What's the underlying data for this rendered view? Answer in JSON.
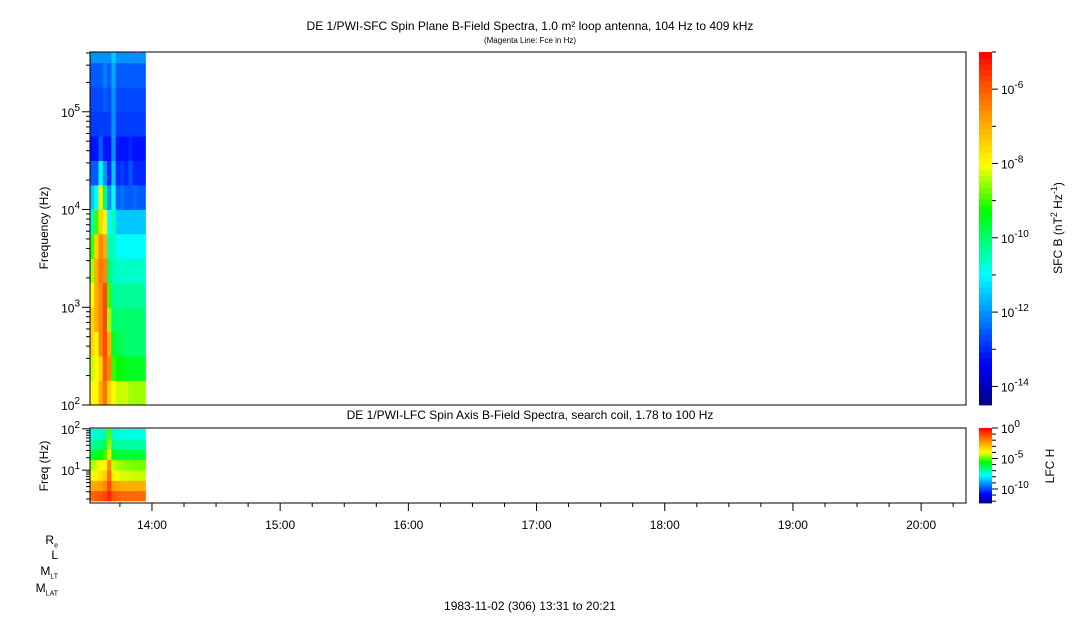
{
  "chart_data": [
    {
      "type": "heatmap",
      "title": "DE 1/PWI-SFC  Spin Plane B-Field Spectra, 1.0 m² loop antenna, 104 Hz to 409 kHz",
      "subtitle": "(Magenta Line: Fce in Hz)",
      "ylabel": "Frequency (Hz)",
      "yscale": "log",
      "ylim": [
        100,
        409000
      ],
      "ytick_labels": [
        "10^2",
        "10^3",
        "10^4",
        "10^5"
      ],
      "colorbar": {
        "label": "SFC B (nT^2 Hz^-1)",
        "scale": "log",
        "range_log10": [
          -14.5,
          -5
        ],
        "tick_labels": [
          "10^-6",
          "10^-8",
          "10^-10",
          "10^-12",
          "10^-14"
        ],
        "colormap": [
          "#00007f",
          "#0000ff",
          "#00ffff",
          "#00ff00",
          "#ffff00",
          "#ff8000",
          "#ff0000"
        ]
      },
      "time_bins": [
        "13:31",
        "13:33",
        "13:35",
        "13:37",
        "13:39",
        "13:41",
        "13:43",
        "13:45",
        "13:47",
        "13:49",
        "13:51",
        "13:53",
        "13:55",
        "13:57"
      ],
      "log10_freq_bins": [
        2.0,
        2.25,
        2.5,
        2.75,
        3.0,
        3.25,
        3.5,
        3.75,
        4.0,
        4.25,
        4.5,
        4.75,
        5.0,
        5.25,
        5.5,
        5.61
      ],
      "log10_values": [
        [
          -8.0,
          -8.0,
          -7.0,
          -6.3,
          -7.5,
          -8.0,
          -8.3,
          -8.3,
          -8.3,
          -8.5,
          -8.5,
          -8.5,
          -8.5
        ],
        [
          -8.3,
          -8.0,
          -7.5,
          -6.0,
          -6.5,
          -9.0,
          -9.3,
          -9.3,
          -9.5,
          -9.5,
          -9.5,
          -9.5,
          -9.5
        ],
        [
          -7.5,
          -8.0,
          -6.5,
          -5.8,
          -7.0,
          -9.5,
          -9.8,
          -9.8,
          -10.0,
          -10.0,
          -10.0,
          -10.0,
          -10.0
        ],
        [
          -7.5,
          -7.0,
          -6.5,
          -5.8,
          -8.5,
          -10.0,
          -10.0,
          -10.0,
          -10.0,
          -10.0,
          -10.0,
          -10.0,
          -10.0
        ],
        [
          -8.0,
          -7.0,
          -6.5,
          -5.8,
          -9.0,
          -10.3,
          -10.3,
          -10.3,
          -10.3,
          -10.3,
          -10.3,
          -10.3,
          -10.3
        ],
        [
          -8.5,
          -7.0,
          -6.3,
          -6.5,
          -10.0,
          -10.5,
          -10.6,
          -10.6,
          -10.6,
          -10.6,
          -10.6,
          -10.6,
          -10.6
        ],
        [
          -9.0,
          -7.5,
          -6.5,
          -7.0,
          -10.5,
          -10.5,
          -11.0,
          -11.0,
          -11.0,
          -11.0,
          -11.0,
          -11.0,
          -11.0
        ],
        [
          -10.5,
          -9.0,
          -7.5,
          -8.0,
          -11.0,
          -10.5,
          -11.5,
          -11.5,
          -11.5,
          -11.5,
          -11.5,
          -11.5,
          -11.5
        ],
        [
          -11.5,
          -11.0,
          -8.0,
          -10.0,
          -12.0,
          -11.0,
          -12.5,
          -12.3,
          -12.5,
          -12.5,
          -12.4,
          -12.5,
          -12.5
        ],
        [
          -12.5,
          -12.5,
          -11.0,
          -12.0,
          -13.0,
          -11.5,
          -13.0,
          -12.8,
          -13.0,
          -12.6,
          -13.0,
          -13.0,
          -13.0
        ],
        [
          -13.2,
          -13.2,
          -12.5,
          -13.2,
          -13.2,
          -12.0,
          -13.2,
          -13.2,
          -13.2,
          -13.0,
          -13.2,
          -13.2,
          -13.2
        ],
        [
          -12.8,
          -12.8,
          -12.8,
          -12.8,
          -12.8,
          -12.0,
          -12.8,
          -12.8,
          -12.8,
          -12.8,
          -12.8,
          -12.8,
          -12.8
        ],
        [
          -12.7,
          -12.7,
          -12.7,
          -12.5,
          -12.7,
          -12.0,
          -12.7,
          -12.7,
          -12.7,
          -12.7,
          -12.7,
          -12.7,
          -12.7
        ],
        [
          -12.5,
          -12.5,
          -12.5,
          -12.2,
          -12.5,
          -11.8,
          -12.5,
          -12.5,
          -12.5,
          -12.5,
          -12.5,
          -12.5,
          -12.5
        ],
        [
          -12.0,
          -12.0,
          -12.0,
          -12.0,
          -12.0,
          -11.5,
          -12.0,
          -12.0,
          -12.0,
          -12.0,
          -12.0,
          -12.0,
          -12.0
        ]
      ]
    },
    {
      "type": "heatmap",
      "title": "DE 1/PWI-LFC  Spin Axis B-Field Spectra, search coil, 1.78 to 100 Hz",
      "ylabel": "Freq (Hz)",
      "yscale": "log",
      "ylim": [
        1.78,
        100
      ],
      "ytick_labels": [
        "10^1",
        "10^2"
      ],
      "colorbar": {
        "label": "LFC H",
        "scale": "log",
        "range_log10": [
          -12.3,
          0
        ],
        "tick_labels": [
          "10^0",
          "10^-5",
          "10^-10"
        ]
      },
      "time_bins": [
        "13:31",
        "13:33",
        "13:35",
        "13:37",
        "13:39",
        "13:41",
        "13:43",
        "13:45",
        "13:47",
        "13:49",
        "13:51",
        "13:53",
        "13:55",
        "13:57"
      ],
      "log10_freq_bins": [
        0.25,
        0.5,
        0.75,
        1.0,
        1.25,
        1.5,
        1.75,
        2.0
      ],
      "log10_values": [
        [
          -1.5,
          -1.3,
          -1.2,
          -1.0,
          -0.5,
          -1.2,
          -1.4,
          -1.5,
          -1.5,
          -1.5,
          -1.5,
          -1.5,
          -1.5
        ],
        [
          -2.5,
          -2.5,
          -2.3,
          -2.0,
          -1.0,
          -2.3,
          -2.5,
          -2.6,
          -2.6,
          -2.6,
          -2.6,
          -2.6,
          -2.6
        ],
        [
          -4.0,
          -3.8,
          -3.5,
          -3.2,
          -1.5,
          -3.8,
          -4.0,
          -4.2,
          -4.2,
          -4.2,
          -4.3,
          -4.3,
          -4.3
        ],
        [
          -4.5,
          -4.2,
          -4.0,
          -3.8,
          -2.0,
          -4.3,
          -4.5,
          -4.6,
          -4.7,
          -4.7,
          -4.8,
          -4.8,
          -4.8
        ],
        [
          -6.0,
          -5.8,
          -5.6,
          -5.2,
          -3.5,
          -5.8,
          -6.0,
          -6.0,
          -6.0,
          -6.0,
          -6.0,
          -6.0,
          -6.0
        ],
        [
          -7.0,
          -6.8,
          -6.6,
          -6.3,
          -4.5,
          -6.8,
          -7.0,
          -7.0,
          -7.0,
          -7.0,
          -7.0,
          -7.0,
          -7.0
        ],
        [
          -7.5,
          -7.3,
          -7.2,
          -7.0,
          -5.0,
          -7.3,
          -7.5,
          -7.5,
          -7.5,
          -7.5,
          -7.5,
          -7.5,
          -7.5
        ]
      ]
    }
  ],
  "xaxis": {
    "range": [
      "13:31",
      "20:21"
    ],
    "tick_labels": [
      "14:00",
      "15:00",
      "16:00",
      "17:00",
      "18:00",
      "19:00",
      "20:00"
    ]
  },
  "ephemeris_labels": [
    {
      "main": "R",
      "sub": "e"
    },
    {
      "main": "L",
      "sub": ""
    },
    {
      "main": "M",
      "sub": "LT"
    },
    {
      "main": "M",
      "sub": "LAT"
    }
  ],
  "footer": "1983-11-02 (306) 13:31 to 20:21"
}
